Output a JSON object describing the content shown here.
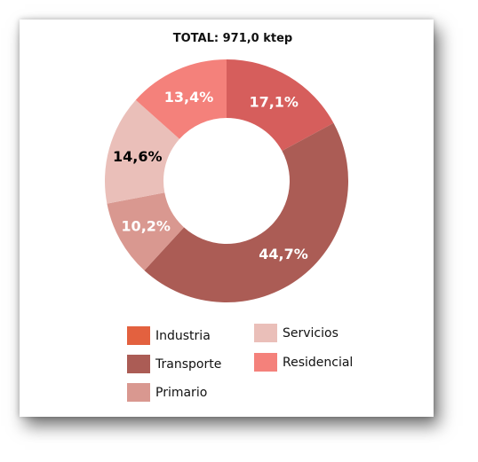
{
  "chart_data": {
    "type": "pie",
    "title": "TOTAL: 971,0 ktep",
    "categories": [
      "Industria",
      "Transporte",
      "Primario",
      "Servicios",
      "Residencial"
    ],
    "values": [
      17.1,
      44.7,
      10.2,
      14.6,
      13.4
    ],
    "value_labels": [
      "17,1%",
      "44,7%",
      "10,2%",
      "14,6%",
      "13,4%"
    ],
    "colors": [
      "#d65e5c",
      "#ab5c55",
      "#d99890",
      "#eabfb9",
      "#f4817b"
    ],
    "label_colors": [
      "#ffffff",
      "#ffffff",
      "#ffffff",
      "#000000",
      "#ffffff"
    ],
    "donut": true,
    "legend": {
      "placement": "bottom",
      "items": [
        {
          "label": "Industria",
          "color": "#e3613f"
        },
        {
          "label": "Transporte",
          "color": "#ab5c55"
        },
        {
          "label": "Primario",
          "color": "#d99890"
        },
        {
          "label": "Servicios",
          "color": "#eabfb9"
        },
        {
          "label": "Residencial",
          "color": "#f4817b"
        }
      ]
    }
  }
}
